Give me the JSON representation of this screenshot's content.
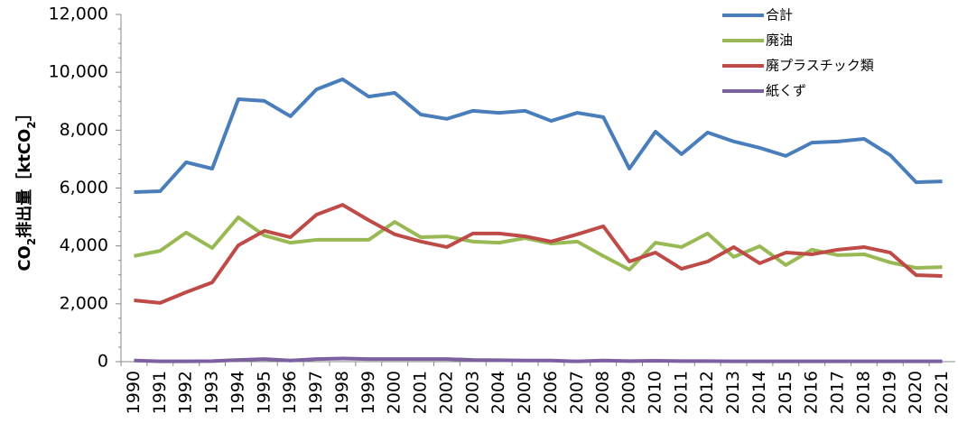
{
  "chart_data": {
    "type": "line",
    "ylabel": [
      "CO",
      "2",
      "排出量［ktCO",
      "2",
      "］"
    ],
    "categories": [
      "1990",
      "1991",
      "1992",
      "1993",
      "1994",
      "1995",
      "1996",
      "1997",
      "1998",
      "1999",
      "2000",
      "2001",
      "2002",
      "2003",
      "2004",
      "2005",
      "2006",
      "2007",
      "2008",
      "2009",
      "2010",
      "2011",
      "2012",
      "2013",
      "2014",
      "2015",
      "2016",
      "2017",
      "2018",
      "2019",
      "2020",
      "2021"
    ],
    "series": [
      {
        "name": "合計",
        "color": "#4a7ebb",
        "values": [
          5860,
          5890,
          6890,
          6670,
          9070,
          9010,
          8480,
          9410,
          9760,
          9160,
          9290,
          8540,
          8390,
          8670,
          8600,
          8670,
          8320,
          8600,
          8450,
          6670,
          7950,
          7170,
          7920,
          7610,
          7390,
          7110,
          7570,
          7610,
          7700,
          7140,
          6200,
          6230
        ]
      },
      {
        "name": "廃油",
        "color": "#98b954",
        "values": [
          3650,
          3830,
          4460,
          3930,
          4990,
          4360,
          4110,
          4210,
          4210,
          4210,
          4830,
          4300,
          4330,
          4150,
          4110,
          4270,
          4080,
          4150,
          3650,
          3180,
          4110,
          3960,
          4430,
          3620,
          3990,
          3340,
          3870,
          3680,
          3710,
          3430,
          3240,
          3270
        ]
      },
      {
        "name": "廃プラスチック類",
        "color": "#be4b48",
        "values": [
          2120,
          2030,
          2400,
          2740,
          4020,
          4520,
          4300,
          5080,
          5420,
          4890,
          4400,
          4150,
          3960,
          4430,
          4430,
          4330,
          4150,
          4400,
          4680,
          3460,
          3770,
          3210,
          3460,
          3960,
          3400,
          3770,
          3710,
          3870,
          3960,
          3770,
          2990,
          2960
        ]
      },
      {
        "name": "紙くず",
        "color": "#7d60a0",
        "values": [
          40,
          10,
          10,
          20,
          60,
          90,
          40,
          90,
          110,
          90,
          90,
          90,
          90,
          60,
          50,
          40,
          40,
          10,
          40,
          20,
          30,
          20,
          20,
          10,
          10,
          10,
          10,
          10,
          10,
          10,
          10,
          10
        ]
      }
    ],
    "ylim": [
      0,
      12000
    ],
    "yticks": [
      0,
      {
        "value": 2000,
        "label": "2,000"
      },
      {
        "value": 4000,
        "label": "4,000"
      },
      {
        "value": 6000,
        "label": "6,000"
      },
      {
        "value": 8000,
        "label": "8,000"
      },
      {
        "value": 10000,
        "label": "10,000"
      },
      {
        "value": 12000,
        "label": "12,000"
      }
    ],
    "grid": false,
    "legend": "top-right"
  }
}
